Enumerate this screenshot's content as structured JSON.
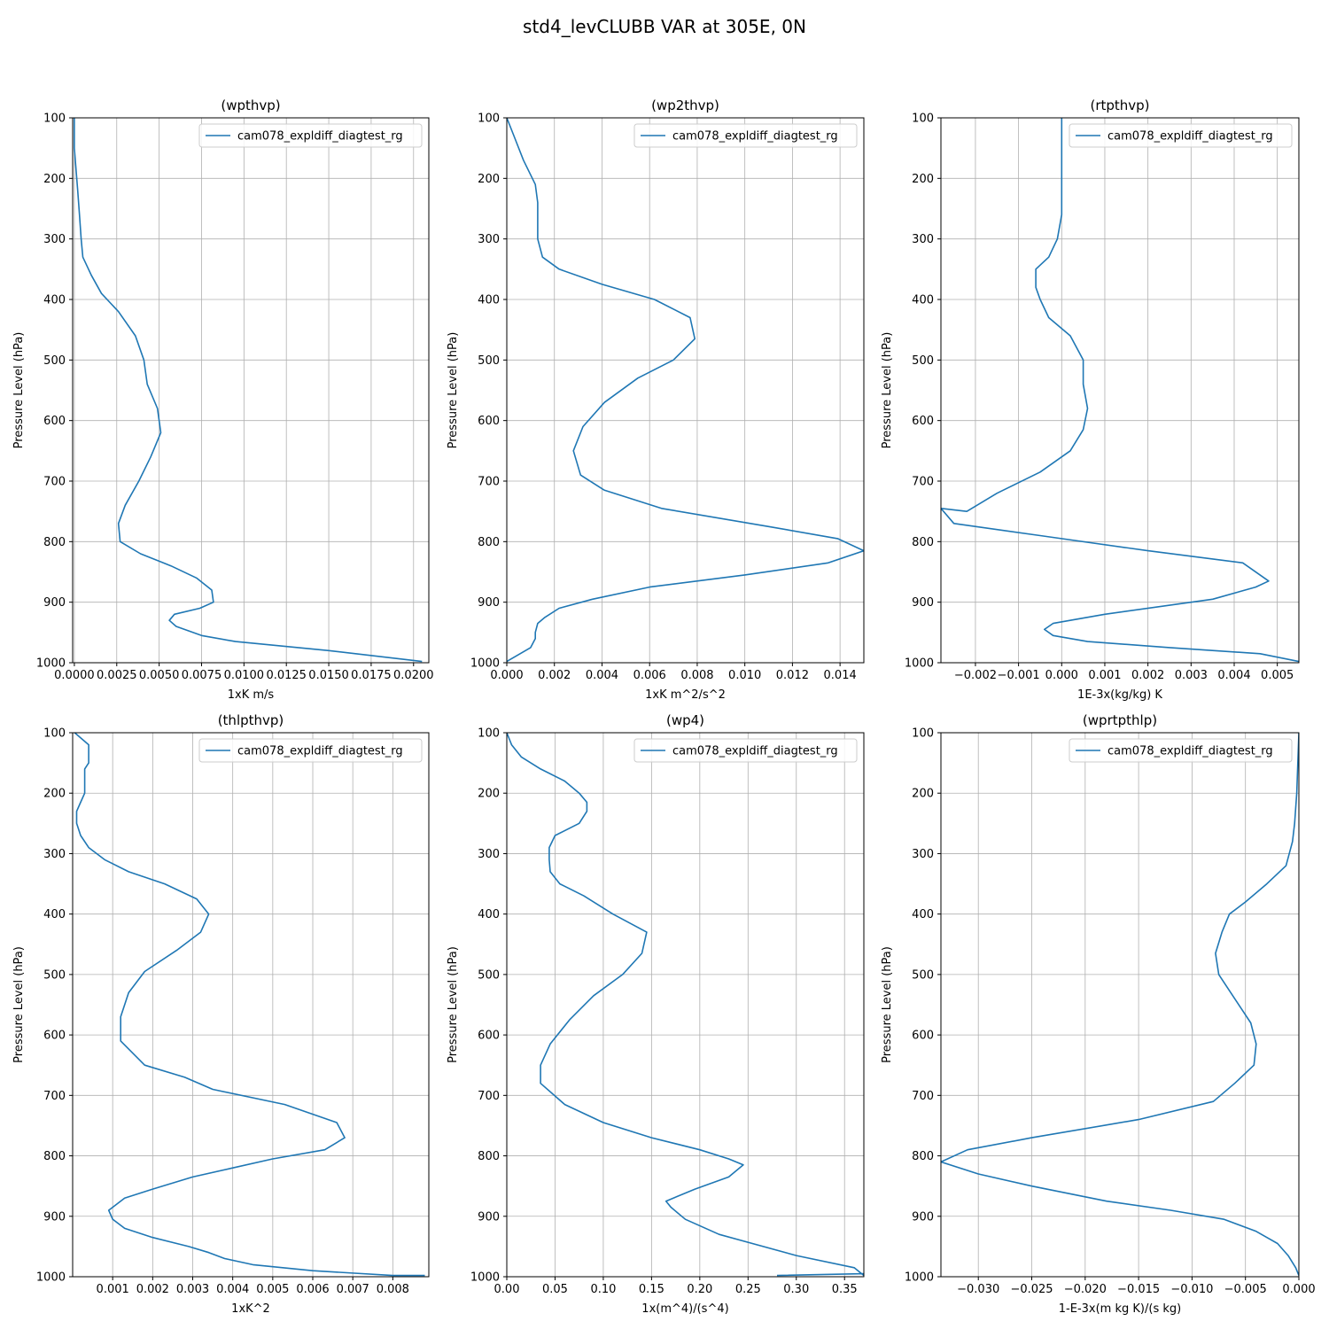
{
  "figure": {
    "title": "std4_levCLUBB VAR at 305E, 0N"
  },
  "colors": {
    "series": "#1f77b4"
  },
  "chart_data": [
    {
      "type": "line",
      "title": "(wpthvp)",
      "xlabel": "1xK m/s",
      "ylabel": "Pressure Level (hPa)",
      "xlim": [
        -0.0001,
        0.0209
      ],
      "ylim": [
        1000,
        100
      ],
      "xticks": [
        0.0,
        0.0025,
        0.005,
        0.0075,
        0.01,
        0.0125,
        0.015,
        0.0175,
        0.02
      ],
      "xtick_labels": [
        "0.0000",
        "0.0025",
        "0.0050",
        "0.0075",
        "0.0100",
        "0.0125",
        "0.0150",
        "0.0175",
        "0.0200"
      ],
      "yticks": [
        100,
        200,
        300,
        400,
        500,
        600,
        700,
        800,
        900,
        1000
      ],
      "ytick_labels": [
        "100",
        "200",
        "300",
        "400",
        "500",
        "600",
        "700",
        "800",
        "900",
        "1000"
      ],
      "grid": true,
      "legend": "top-right",
      "series": [
        {
          "name": "cam078_expldiff_diagtest_rg",
          "x": [
            0.0,
            0.0,
            0.0001,
            0.0002,
            0.0003,
            0.0004,
            0.0005,
            0.001,
            0.0016,
            0.0026,
            0.0036,
            0.0041,
            0.0043,
            0.0049,
            0.0051,
            0.0045,
            0.0038,
            0.003,
            0.0026,
            0.0027,
            0.0039,
            0.0057,
            0.0072,
            0.0081,
            0.0082,
            0.0074,
            0.0059,
            0.0056,
            0.006,
            0.0075,
            0.0095,
            0.015,
            0.0205
          ],
          "y": [
            100,
            150,
            185,
            220,
            260,
            300,
            330,
            360,
            390,
            420,
            460,
            500,
            540,
            580,
            620,
            660,
            700,
            740,
            770,
            800,
            820,
            840,
            860,
            880,
            900,
            910,
            920,
            930,
            940,
            955,
            965,
            980,
            998
          ]
        }
      ]
    },
    {
      "type": "line",
      "title": "(wp2thvp)",
      "xlabel": "1xK m^2/s^2",
      "ylabel": "Pressure Level (hPa)",
      "xlim": [
        0.0,
        0.015
      ],
      "ylim": [
        1000,
        100
      ],
      "xticks": [
        0.0,
        0.002,
        0.004,
        0.006,
        0.008,
        0.01,
        0.012,
        0.014
      ],
      "xtick_labels": [
        "0.000",
        "0.002",
        "0.004",
        "0.006",
        "0.008",
        "0.010",
        "0.012",
        "0.014"
      ],
      "yticks": [
        100,
        200,
        300,
        400,
        500,
        600,
        700,
        800,
        900,
        1000
      ],
      "ytick_labels": [
        "100",
        "200",
        "300",
        "400",
        "500",
        "600",
        "700",
        "800",
        "900",
        "1000"
      ],
      "grid": true,
      "legend": "top-right",
      "series": [
        {
          "name": "cam078_expldiff_diagtest_rg",
          "x": [
            0.0,
            0.0003,
            0.0007,
            0.0012,
            0.0013,
            0.0013,
            0.0013,
            0.0015,
            0.0022,
            0.004,
            0.0062,
            0.0077,
            0.0079,
            0.007,
            0.0055,
            0.0041,
            0.0032,
            0.0028,
            0.0031,
            0.0041,
            0.0065,
            0.011,
            0.0139,
            0.015,
            0.0135,
            0.01,
            0.006,
            0.0036,
            0.0022,
            0.0016,
            0.0013,
            0.0012,
            0.0012,
            0.001,
            0.0
          ],
          "y": [
            100,
            130,
            170,
            210,
            240,
            270,
            300,
            330,
            350,
            375,
            400,
            430,
            465,
            500,
            530,
            570,
            610,
            650,
            690,
            715,
            745,
            775,
            795,
            815,
            835,
            855,
            875,
            895,
            910,
            925,
            935,
            950,
            960,
            975,
            998
          ]
        }
      ]
    },
    {
      "type": "line",
      "title": "(rtpthvp)",
      "xlabel": "1E-3x(kg/kg) K",
      "ylabel": "Pressure Level (hPa)",
      "xlim": [
        -0.0028,
        0.0055
      ],
      "ylim": [
        1000,
        100
      ],
      "xticks": [
        -0.002,
        -0.001,
        0.0,
        0.001,
        0.002,
        0.003,
        0.004,
        0.005
      ],
      "xtick_labels": [
        "−0.002",
        "−0.001",
        "0.000",
        "0.001",
        "0.002",
        "0.003",
        "0.004",
        "0.005"
      ],
      "yticks": [
        100,
        200,
        300,
        400,
        500,
        600,
        700,
        800,
        900,
        1000
      ],
      "ytick_labels": [
        "100",
        "200",
        "300",
        "400",
        "500",
        "600",
        "700",
        "800",
        "900",
        "1000"
      ],
      "grid": true,
      "legend": "top-right",
      "series": [
        {
          "name": "cam078_expldiff_diagtest_rg",
          "x": [
            0.0,
            0.0,
            0.0,
            0.0,
            0.0,
            -0.0001,
            -0.0003,
            -0.0006,
            -0.0006,
            -0.0005,
            -0.0003,
            0.0002,
            0.0005,
            0.0005,
            0.0006,
            0.0005,
            0.0002,
            -0.0005,
            -0.0015,
            -0.0022,
            -0.0028,
            -0.0025,
            -0.0005,
            0.002,
            0.0042,
            0.0048,
            0.0045,
            0.0035,
            0.001,
            -0.0002,
            -0.0004,
            -0.0002,
            0.0006,
            0.0025,
            0.0046,
            0.0055
          ],
          "y": [
            100,
            150,
            200,
            230,
            260,
            300,
            330,
            350,
            380,
            400,
            430,
            460,
            500,
            540,
            580,
            615,
            650,
            685,
            720,
            750,
            745,
            770,
            790,
            815,
            835,
            865,
            875,
            895,
            920,
            935,
            945,
            955,
            965,
            975,
            985,
            998
          ]
        }
      ]
    },
    {
      "type": "line",
      "title": "(thlpthvp)",
      "xlabel": "1xK^2",
      "ylabel": "Pressure Level (hPa)",
      "xlim": [
        0.0,
        0.0089
      ],
      "ylim": [
        1000,
        100
      ],
      "xticks": [
        0.001,
        0.002,
        0.003,
        0.004,
        0.005,
        0.006,
        0.007,
        0.008
      ],
      "xtick_labels": [
        "0.001",
        "0.002",
        "0.003",
        "0.004",
        "0.005",
        "0.006",
        "0.007",
        "0.008"
      ],
      "yticks": [
        100,
        200,
        300,
        400,
        500,
        600,
        700,
        800,
        900,
        1000
      ],
      "ytick_labels": [
        "100",
        "200",
        "300",
        "400",
        "500",
        "600",
        "700",
        "800",
        "900",
        "1000"
      ],
      "grid": true,
      "legend": "top-right",
      "series": [
        {
          "name": "cam078_expldiff_diagtest_rg",
          "x": [
            5e-05,
            0.0004,
            0.0004,
            0.0003,
            0.0003,
            0.0003,
            0.0002,
            0.0001,
            0.0001,
            0.0002,
            0.0004,
            0.0008,
            0.0014,
            0.0023,
            0.0031,
            0.0034,
            0.0032,
            0.0026,
            0.0018,
            0.0014,
            0.0012,
            0.0012,
            0.0018,
            0.0028,
            0.0035,
            0.0053,
            0.0066,
            0.0068,
            0.0063,
            0.005,
            0.004,
            0.003,
            0.002,
            0.0013,
            0.0009,
            0.001,
            0.0013,
            0.002,
            0.0029,
            0.0034,
            0.0038,
            0.0045,
            0.006,
            0.008,
            0.0088
          ],
          "y": [
            100,
            120,
            150,
            160,
            180,
            200,
            215,
            230,
            250,
            270,
            290,
            310,
            330,
            350,
            375,
            400,
            430,
            460,
            495,
            530,
            570,
            610,
            650,
            670,
            690,
            715,
            745,
            770,
            790,
            805,
            820,
            835,
            855,
            870,
            890,
            905,
            920,
            935,
            950,
            960,
            970,
            980,
            990,
            998,
            998
          ]
        }
      ]
    },
    {
      "type": "line",
      "title": "(wp4)",
      "xlabel": "1x(m^4)/(s^4)",
      "ylabel": "Pressure Level (hPa)",
      "xlim": [
        0.0,
        0.37
      ],
      "ylim": [
        1000,
        100
      ],
      "xticks": [
        0.0,
        0.05,
        0.1,
        0.15,
        0.2,
        0.25,
        0.3,
        0.35
      ],
      "xtick_labels": [
        "0.00",
        "0.05",
        "0.10",
        "0.15",
        "0.20",
        "0.25",
        "0.30",
        "0.35"
      ],
      "yticks": [
        100,
        200,
        300,
        400,
        500,
        600,
        700,
        800,
        900,
        1000
      ],
      "ytick_labels": [
        "100",
        "200",
        "300",
        "400",
        "500",
        "600",
        "700",
        "800",
        "900",
        "1000"
      ],
      "grid": true,
      "legend": "top-right",
      "series": [
        {
          "name": "cam078_expldiff_diagtest_rg",
          "x": [
            0.0,
            0.005,
            0.015,
            0.035,
            0.06,
            0.075,
            0.083,
            0.083,
            0.075,
            0.05,
            0.044,
            0.044,
            0.045,
            0.055,
            0.08,
            0.11,
            0.145,
            0.14,
            0.12,
            0.09,
            0.065,
            0.045,
            0.035,
            0.035,
            0.06,
            0.1,
            0.15,
            0.2,
            0.23,
            0.245,
            0.23,
            0.195,
            0.165,
            0.17,
            0.185,
            0.22,
            0.3,
            0.36,
            0.37,
            0.37,
            0.28
          ],
          "y": [
            100,
            120,
            140,
            160,
            180,
            200,
            215,
            230,
            250,
            270,
            290,
            310,
            330,
            350,
            370,
            400,
            430,
            465,
            500,
            535,
            575,
            615,
            650,
            680,
            715,
            745,
            770,
            790,
            805,
            815,
            835,
            855,
            875,
            885,
            905,
            930,
            965,
            985,
            998,
            995,
            998
          ]
        }
      ]
    },
    {
      "type": "line",
      "title": "(wprtpthlp)",
      "xlabel": "1-E-3x(m kg K)/(s kg)",
      "ylabel": "Pressure Level (hPa)",
      "xlim": [
        -0.0335,
        0.0
      ],
      "ylim": [
        1000,
        100
      ],
      "xticks": [
        -0.03,
        -0.025,
        -0.02,
        -0.015,
        -0.01,
        -0.005,
        0.0
      ],
      "xtick_labels": [
        "−0.030",
        "−0.025",
        "−0.020",
        "−0.015",
        "−0.010",
        "−0.005",
        "0.000"
      ],
      "yticks": [
        100,
        200,
        300,
        400,
        500,
        600,
        700,
        800,
        900,
        1000
      ],
      "ytick_labels": [
        "100",
        "200",
        "300",
        "400",
        "500",
        "600",
        "700",
        "800",
        "900",
        "1000"
      ],
      "grid": true,
      "legend": "top-right",
      "series": [
        {
          "name": "cam078_expldiff_diagtest_rg",
          "x": [
            0.0,
            -0.0001,
            -0.0002,
            -0.0004,
            -0.0006,
            -0.0012,
            -0.003,
            -0.005,
            -0.0065,
            -0.0072,
            -0.0078,
            -0.0075,
            -0.006,
            -0.0045,
            -0.004,
            -0.0042,
            -0.006,
            -0.008,
            -0.015,
            -0.025,
            -0.031,
            -0.0335,
            -0.03,
            -0.025,
            -0.018,
            -0.012,
            -0.007,
            -0.004,
            -0.002,
            -0.001,
            -0.0003,
            0.0
          ],
          "y": [
            100,
            150,
            200,
            250,
            280,
            320,
            350,
            380,
            400,
            430,
            465,
            500,
            540,
            580,
            615,
            650,
            680,
            710,
            740,
            770,
            790,
            810,
            830,
            850,
            875,
            890,
            905,
            925,
            945,
            965,
            985,
            998
          ]
        }
      ]
    }
  ]
}
